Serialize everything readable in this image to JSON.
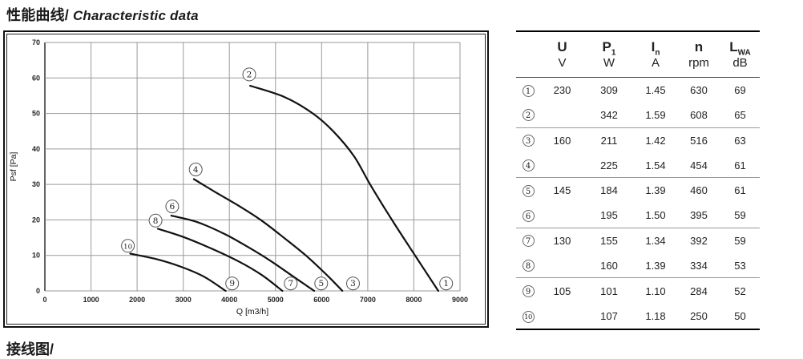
{
  "title": {
    "zh": "性能曲线/",
    "en": " Characteristic data"
  },
  "footer": {
    "cutoff_text": "接线图/"
  },
  "chart_data": {
    "type": "line",
    "title": "",
    "xlabel": "Q [m3/h]",
    "ylabel": "Psf  [Pa]",
    "xlim": [
      0,
      9000
    ],
    "ylim": [
      0,
      70
    ],
    "xticks": [
      0,
      1000,
      2000,
      3000,
      4000,
      5000,
      6000,
      7000,
      8000,
      9000
    ],
    "yticks": [
      0,
      10,
      20,
      30,
      40,
      50,
      60,
      70
    ],
    "grid": true,
    "legend_position": "none",
    "series": [
      {
        "name": "curve-2-to-1",
        "start_label": "2",
        "end_label": "1",
        "points": [
          [
            4450,
            57.8
          ],
          [
            5200,
            54.6
          ],
          [
            5810,
            50
          ],
          [
            6250,
            45
          ],
          [
            6700,
            38
          ],
          [
            7050,
            30
          ],
          [
            7550,
            19.5
          ],
          [
            8050,
            9.5
          ],
          [
            8530,
            0
          ]
        ]
      },
      {
        "name": "curve-4-to-3",
        "start_label": "4",
        "end_label": "3",
        "points": [
          [
            3230,
            31.5
          ],
          [
            3700,
            27.8
          ],
          [
            4200,
            24
          ],
          [
            4700,
            19.8
          ],
          [
            5200,
            14.8
          ],
          [
            5700,
            9.5
          ],
          [
            6150,
            4
          ],
          [
            6450,
            0
          ]
        ]
      },
      {
        "name": "curve-6-to-5",
        "start_label": "6",
        "end_label": "5",
        "points": [
          [
            2740,
            21.2
          ],
          [
            3300,
            19.4
          ],
          [
            3900,
            16
          ],
          [
            4400,
            12.4
          ],
          [
            4900,
            8.4
          ],
          [
            5400,
            3.9
          ],
          [
            5840,
            0
          ]
        ]
      },
      {
        "name": "curve-8-to-7",
        "start_label": "8",
        "end_label": "7",
        "points": [
          [
            2450,
            17.5
          ],
          [
            3000,
            15.2
          ],
          [
            3600,
            12
          ],
          [
            4200,
            8.3
          ],
          [
            4700,
            4.5
          ],
          [
            5150,
            0
          ]
        ]
      },
      {
        "name": "curve-10-to-9",
        "start_label": "10",
        "end_label": "9",
        "points": [
          [
            1850,
            10.5
          ],
          [
            2400,
            9
          ],
          [
            2950,
            6.8
          ],
          [
            3450,
            4
          ],
          [
            3920,
            0
          ]
        ]
      }
    ],
    "curve_labels": [
      {
        "num": "2",
        "x": 4430,
        "y": 61.0
      },
      {
        "num": "4",
        "x": 3270,
        "y": 34.2
      },
      {
        "num": "6",
        "x": 2760,
        "y": 23.8
      },
      {
        "num": "8",
        "x": 2400,
        "y": 19.8
      },
      {
        "num": "10",
        "x": 1800,
        "y": 12.7
      },
      {
        "num": "9",
        "x": 4060,
        "y": 2.1
      },
      {
        "num": "7",
        "x": 5330,
        "y": 2.1
      },
      {
        "num": "5",
        "x": 5990,
        "y": 2.1
      },
      {
        "num": "3",
        "x": 6680,
        "y": 2.1
      },
      {
        "num": "1",
        "x": 8700,
        "y": 2.1
      }
    ],
    "colors": {
      "curve": "#111111",
      "grid": "#9a9a9a",
      "axis": "#222222"
    }
  },
  "table": {
    "columns": [
      {
        "symbol": "U",
        "sub": "",
        "unit": "V"
      },
      {
        "symbol": "P",
        "sub": "1",
        "unit": "W"
      },
      {
        "symbol": "I",
        "sub": "n",
        "unit": "A"
      },
      {
        "symbol": "n",
        "sub": "",
        "unit": "rpm"
      },
      {
        "symbol": "L",
        "sub": "WA",
        "unit": "dB"
      }
    ],
    "rows": [
      {
        "num": "1",
        "U": "230",
        "P1": "309",
        "In": "1.45",
        "n": "630",
        "LWA": "69"
      },
      {
        "num": "2",
        "U": "",
        "P1": "342",
        "In": "1.59",
        "n": "608",
        "LWA": "65"
      },
      {
        "num": "3",
        "U": "160",
        "P1": "211",
        "In": "1.42",
        "n": "516",
        "LWA": "63"
      },
      {
        "num": "4",
        "U": "",
        "P1": "225",
        "In": "1.54",
        "n": "454",
        "LWA": "61"
      },
      {
        "num": "5",
        "U": "145",
        "P1": "184",
        "In": "1.39",
        "n": "460",
        "LWA": "61"
      },
      {
        "num": "6",
        "U": "",
        "P1": "195",
        "In": "1.50",
        "n": "395",
        "LWA": "59"
      },
      {
        "num": "7",
        "U": "130",
        "P1": "155",
        "In": "1.34",
        "n": "392",
        "LWA": "59"
      },
      {
        "num": "8",
        "U": "",
        "P1": "160",
        "In": "1.39",
        "n": "334",
        "LWA": "53"
      },
      {
        "num": "9",
        "U": "105",
        "P1": "101",
        "In": "1.10",
        "n": "284",
        "LWA": "52"
      },
      {
        "num": "10",
        "U": "",
        "P1": "107",
        "In": "1.18",
        "n": "250",
        "LWA": "50"
      }
    ]
  }
}
